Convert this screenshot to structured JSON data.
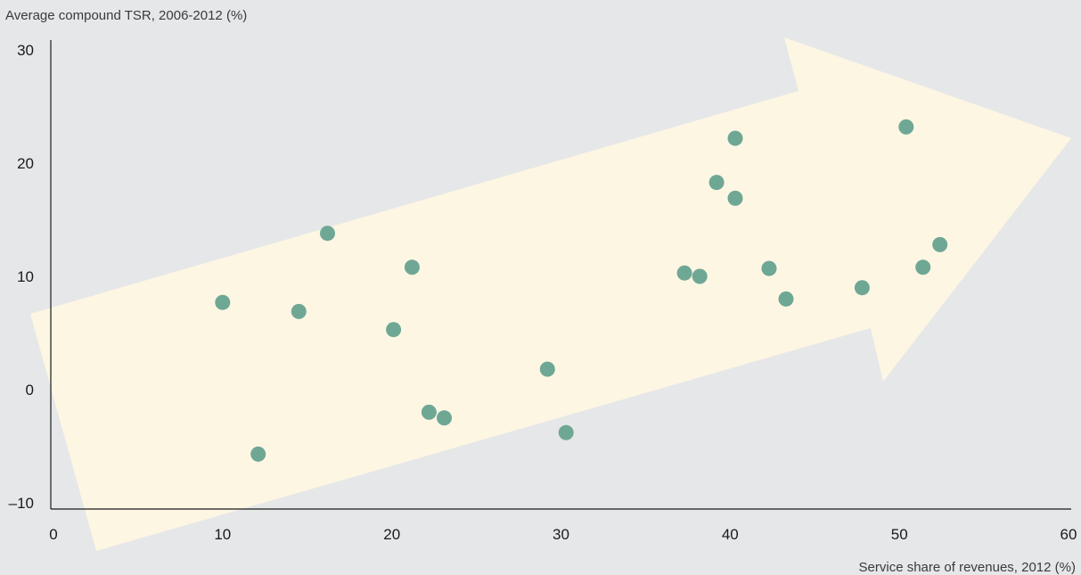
{
  "chart_data": {
    "type": "scatter",
    "title": "",
    "ylabel": "Average compound TSR, 2006-2012 (%)",
    "xlabel": "Service share of revenues, 2012 (%)",
    "xlim": [
      0,
      60
    ],
    "ylim": [
      -10,
      30
    ],
    "xticks": [
      "0",
      "10",
      "20",
      "30",
      "40",
      "50",
      "60"
    ],
    "yticks": [
      "30",
      "20",
      "10",
      "0",
      "–10"
    ],
    "grid": false,
    "legend": "none",
    "points": [
      {
        "x": 10.0,
        "y": 7.7
      },
      {
        "x": 12.1,
        "y": -5.7
      },
      {
        "x": 14.5,
        "y": 6.9
      },
      {
        "x": 16.2,
        "y": 13.8
      },
      {
        "x": 20.1,
        "y": 5.3
      },
      {
        "x": 21.2,
        "y": 10.8
      },
      {
        "x": 22.2,
        "y": -2.0
      },
      {
        "x": 23.1,
        "y": -2.5
      },
      {
        "x": 29.2,
        "y": 1.8
      },
      {
        "x": 30.3,
        "y": -3.8
      },
      {
        "x": 37.3,
        "y": 10.3
      },
      {
        "x": 38.2,
        "y": 10.0
      },
      {
        "x": 39.2,
        "y": 18.3
      },
      {
        "x": 40.3,
        "y": 22.2
      },
      {
        "x": 40.3,
        "y": 16.9
      },
      {
        "x": 42.3,
        "y": 10.7
      },
      {
        "x": 43.3,
        "y": 8.0
      },
      {
        "x": 47.8,
        "y": 9.0
      },
      {
        "x": 50.4,
        "y": 23.2
      },
      {
        "x": 51.4,
        "y": 10.8
      },
      {
        "x": 52.4,
        "y": 12.8
      }
    ]
  },
  "colors": {
    "background": "#e6e7e8",
    "arrow": "#fdf6e3",
    "marker": "#6fa795",
    "axis": "#1a1a1a"
  }
}
